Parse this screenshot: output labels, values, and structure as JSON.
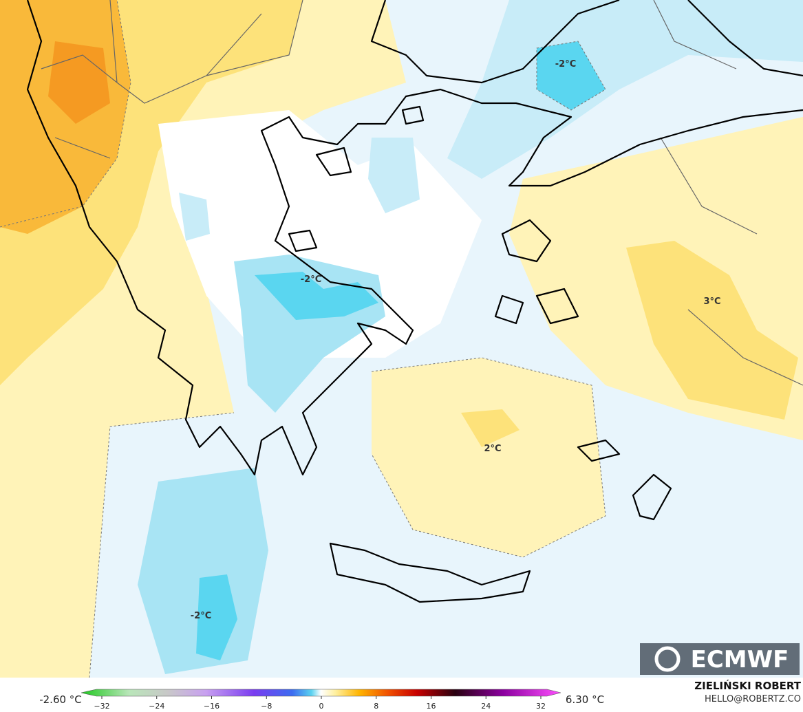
{
  "map": {
    "contour_labels": [
      "-2°C",
      "-2°C",
      "3°C",
      "2°C",
      "-2°C"
    ]
  },
  "legend": {
    "min_label": "-2.60 °C",
    "max_label": "6.30 °C",
    "ticks": [
      "−32",
      "−24",
      "−16",
      "−8",
      "0",
      "8",
      "16",
      "24",
      "32"
    ]
  },
  "credits": {
    "logo": "ECMWF",
    "author": "ZIELIŃSKI ROBERT",
    "email": "HELLO@ROBERTZ.CO"
  }
}
